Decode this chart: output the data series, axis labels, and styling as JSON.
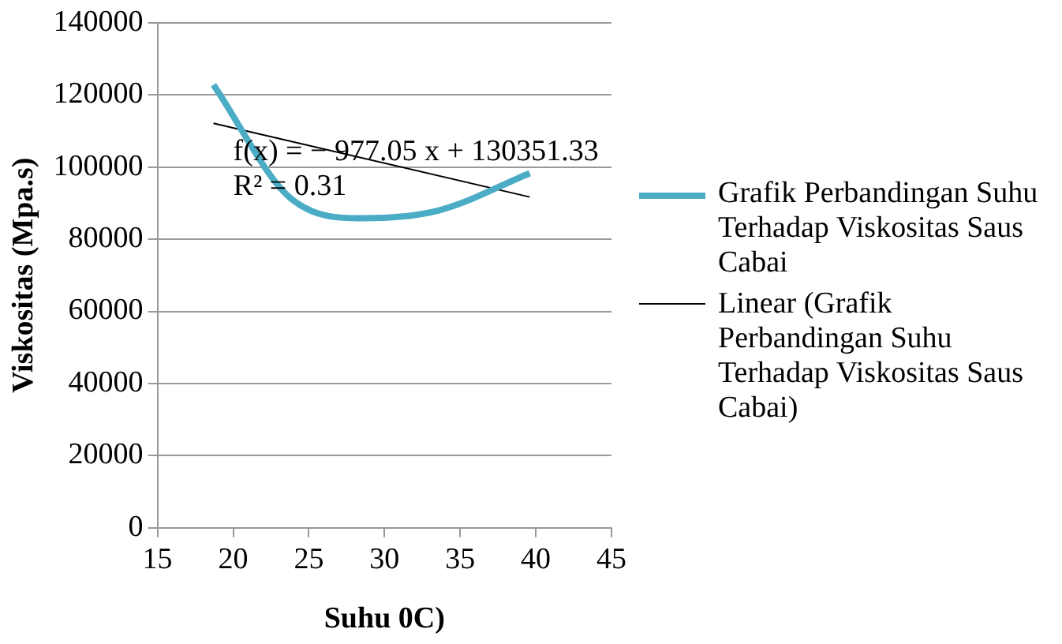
{
  "chart_data": {
    "type": "line",
    "xlabel": "Suhu 0C)",
    "ylabel": "Viskositas (Mpa.s)",
    "xlim": [
      15,
      45
    ],
    "xticks": [
      15,
      20,
      25,
      30,
      35,
      40,
      45
    ],
    "ylim": [
      0,
      140000
    ],
    "yticks": [
      0,
      20000,
      40000,
      60000,
      80000,
      100000,
      120000,
      140000
    ],
    "grid": "y",
    "legend": "right",
    "marker": "none",
    "series": [
      {
        "name": "Grafik Perbandingan Suhu Terhadap Viskositas Saus Cabai",
        "color": "#4bacc6",
        "x": [
          18.7,
          23.9,
          28.6,
          33.6,
          39.6
        ],
        "values": [
          122800,
          91000,
          85800,
          88000,
          98300
        ]
      },
      {
        "name": "Linear (Grafik Perbandingan Suhu Terhadap Viskositas Saus Cabai)",
        "color": "#000000",
        "x": [
          18.7,
          39.6
        ],
        "values": [
          112100,
          91700
        ]
      }
    ],
    "annotations": [
      "f(x) = − 977.05 x + 130351.33",
      "R² = 0.31"
    ]
  }
}
